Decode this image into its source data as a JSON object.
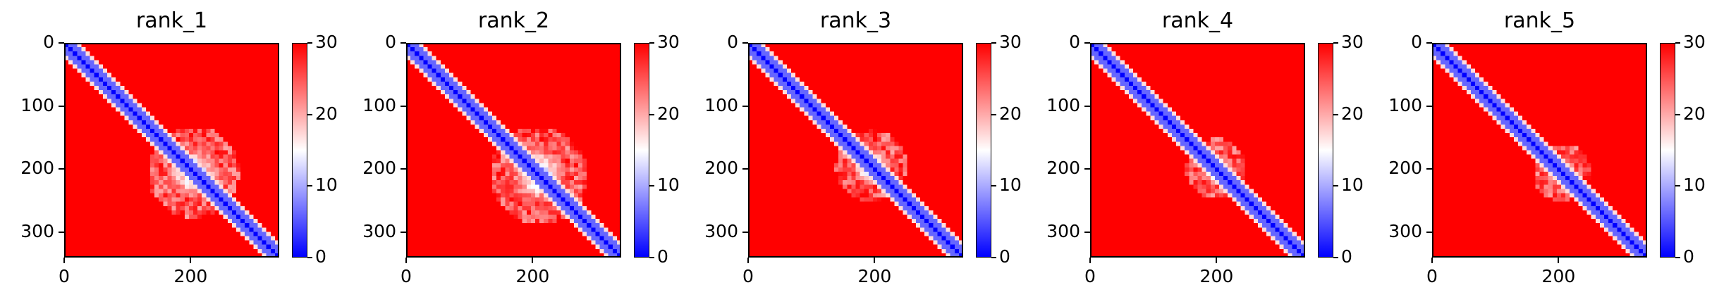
{
  "chart_data": [
    {
      "type": "heatmap",
      "title": "rank_1",
      "matrix_size": 340,
      "x_ticks": [
        "0",
        "200"
      ],
      "x_tick_values": [
        0,
        200
      ],
      "y_ticks": [
        "0",
        "100",
        "200",
        "300"
      ],
      "y_tick_values": [
        0,
        100,
        200,
        300
      ],
      "colorbar": {
        "ticks": [
          "0",
          "10",
          "20",
          "30"
        ],
        "tick_values": [
          0,
          10,
          20,
          30
        ],
        "range": [
          0,
          30
        ],
        "colormap": "bwr"
      },
      "low_region": {
        "center": 205,
        "spread": 45
      }
    },
    {
      "type": "heatmap",
      "title": "rank_2",
      "matrix_size": 340,
      "x_ticks": [
        "0",
        "200"
      ],
      "x_tick_values": [
        0,
        200
      ],
      "y_ticks": [
        "0",
        "100",
        "200",
        "300"
      ],
      "y_tick_values": [
        0,
        100,
        200,
        300
      ],
      "colorbar": {
        "ticks": [
          "0",
          "10",
          "20",
          "30"
        ],
        "tick_values": [
          0,
          10,
          20,
          30
        ],
        "range": [
          0,
          30
        ],
        "colormap": "bwr"
      },
      "low_region": {
        "center": 210,
        "spread": 48
      }
    },
    {
      "type": "heatmap",
      "title": "rank_3",
      "matrix_size": 340,
      "x_ticks": [
        "0",
        "200"
      ],
      "x_tick_values": [
        0,
        200
      ],
      "y_ticks": [
        "0",
        "100",
        "200",
        "300"
      ],
      "y_tick_values": [
        0,
        100,
        200,
        300
      ],
      "colorbar": {
        "ticks": [
          "0",
          "10",
          "20",
          "30"
        ],
        "tick_values": [
          0,
          10,
          20,
          30
        ],
        "range": [
          0,
          30
        ],
        "colormap": "bwr"
      },
      "low_region": {
        "center": 195,
        "spread": 35
      }
    },
    {
      "type": "heatmap",
      "title": "rank_4",
      "matrix_size": 340,
      "x_ticks": [
        "0",
        "200"
      ],
      "x_tick_values": [
        0,
        200
      ],
      "y_ticks": [
        "0",
        "100",
        "200",
        "300"
      ],
      "y_tick_values": [
        0,
        100,
        200,
        300
      ],
      "colorbar": {
        "ticks": [
          "0",
          "10",
          "20",
          "30"
        ],
        "tick_values": [
          0,
          10,
          20,
          30
        ],
        "range": [
          0,
          30
        ],
        "colormap": "bwr"
      },
      "low_region": {
        "center": 200,
        "spread": 30
      }
    },
    {
      "type": "heatmap",
      "title": "rank_5",
      "matrix_size": 340,
      "x_ticks": [
        "0",
        "200"
      ],
      "x_tick_values": [
        0,
        200
      ],
      "y_ticks": [
        "0",
        "100",
        "200",
        "300"
      ],
      "y_tick_values": [
        0,
        100,
        200,
        300
      ],
      "colorbar": {
        "ticks": [
          "0",
          "10",
          "20",
          "30"
        ],
        "tick_values": [
          0,
          10,
          20,
          30
        ],
        "range": [
          0,
          30
        ],
        "colormap": "bwr"
      },
      "low_region": {
        "center": 205,
        "spread": 28
      }
    }
  ],
  "colors": {
    "low": "#0000ff",
    "mid": "#ffffff",
    "high": "#ff0000"
  }
}
